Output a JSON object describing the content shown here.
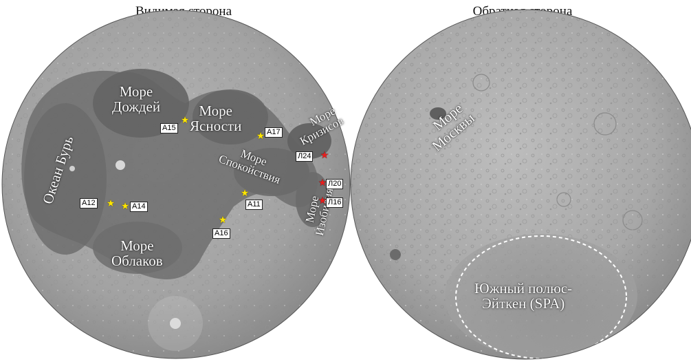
{
  "titles": {
    "near_side": "Видимая сторона",
    "far_side": "Обратная сторона"
  },
  "maria": {
    "imbrium_1": "Море",
    "imbrium_2": "Дождей",
    "serenitatis_1": "Море",
    "serenitatis_2": "Ясности",
    "crisium_1": "Море",
    "crisium_2": "Кризисов",
    "tranquillitatis_1": "Море",
    "tranquillitatis_2": "Спокойствия",
    "fecunditatis_1": "Море",
    "fecunditatis_2": "Изобилия",
    "procellarum": "Океан Бурь",
    "nubium_1": "Море",
    "nubium_2": "Облаков",
    "moscoviense_1": "Море",
    "moscoviense_2": "Москвы",
    "spa_1": "Южный полюс-",
    "spa_2": "Эйткен (SPA)"
  },
  "landing_sites": {
    "apollo": [
      "А15",
      "А17",
      "А12",
      "А14",
      "А11",
      "А16"
    ],
    "luna": [
      "Л24",
      "Л20",
      "Л16"
    ]
  },
  "colors": {
    "apollo_marker": "#ffe600",
    "luna_marker": "#e81e1e",
    "highlands": "#a9a9a9",
    "maria": "#6f6f6f",
    "spa_outline": "#ffffff"
  }
}
